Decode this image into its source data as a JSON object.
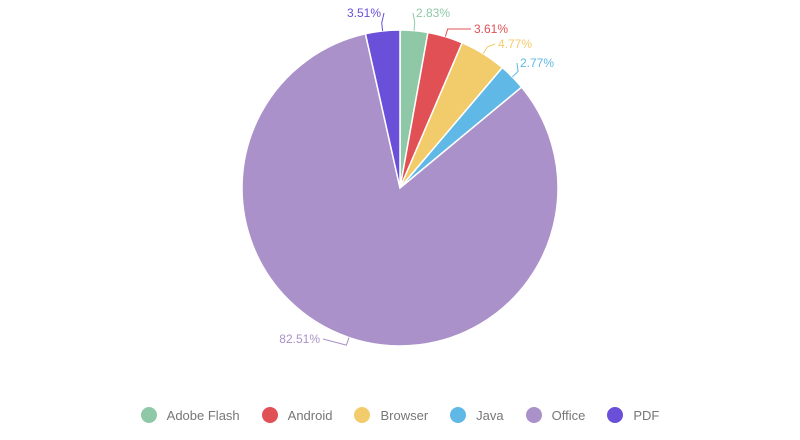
{
  "chart_data": {
    "type": "pie",
    "title": "",
    "categories": [
      "Adobe Flash",
      "Android",
      "Browser",
      "Java",
      "Office",
      "PDF"
    ],
    "values": [
      2.83,
      3.61,
      4.77,
      2.77,
      82.51,
      3.51
    ],
    "value_labels": [
      "2.83%",
      "3.61%",
      "4.77%",
      "2.77%",
      "82.51%",
      "3.51%"
    ],
    "colors": [
      "#8fc8a6",
      "#e05055",
      "#f2cc6b",
      "#5fb8e6",
      "#ab91c9",
      "#6a4fd9"
    ],
    "start_angle_deg": 0,
    "direction": "clockwise",
    "legend_position": "bottom-center"
  }
}
